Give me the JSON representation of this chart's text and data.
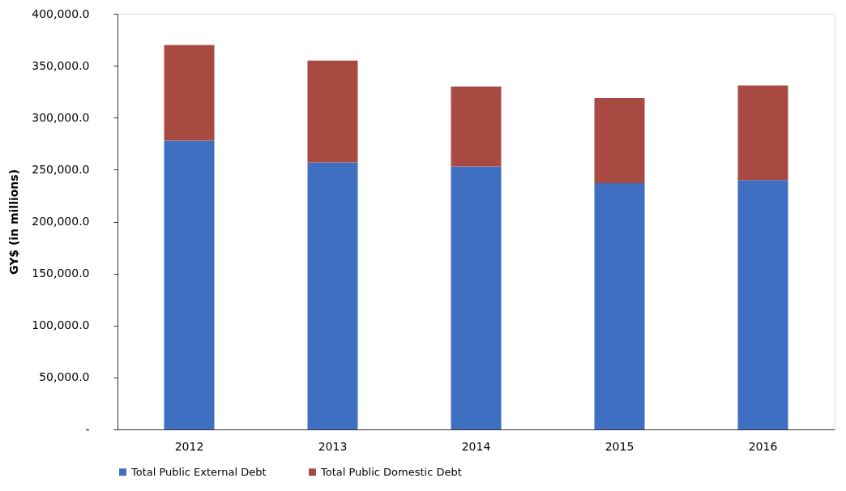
{
  "chart_data": {
    "type": "bar",
    "stacked": true,
    "ylabel": "GY$ (in millions)",
    "categories": [
      "2012",
      "2013",
      "2014",
      "2015",
      "2016"
    ],
    "series": [
      {
        "name": "Total Public External Debt",
        "color": "#3f6fc0",
        "values": [
          278000,
          257000,
          253000,
          237000,
          240000
        ]
      },
      {
        "name": "Total Public Domestic Debt",
        "color": "#a84a42",
        "values": [
          92000,
          98000,
          77000,
          82000,
          91000
        ]
      }
    ],
    "ylim": [
      0,
      400000
    ],
    "yticks": [
      {
        "value": 0,
        "label": "-"
      },
      {
        "value": 50000,
        "label": "50,000.0"
      },
      {
        "value": 100000,
        "label": "100,000.0"
      },
      {
        "value": 150000,
        "label": "150,000.0"
      },
      {
        "value": 200000,
        "label": "200,000.0"
      },
      {
        "value": 250000,
        "label": "250,000.0"
      },
      {
        "value": 300000,
        "label": "300,000.0"
      },
      {
        "value": 350000,
        "label": "350,000.0"
      },
      {
        "value": 400000,
        "label": "400,000.0"
      }
    ],
    "grid": false,
    "legend": "bottom"
  }
}
